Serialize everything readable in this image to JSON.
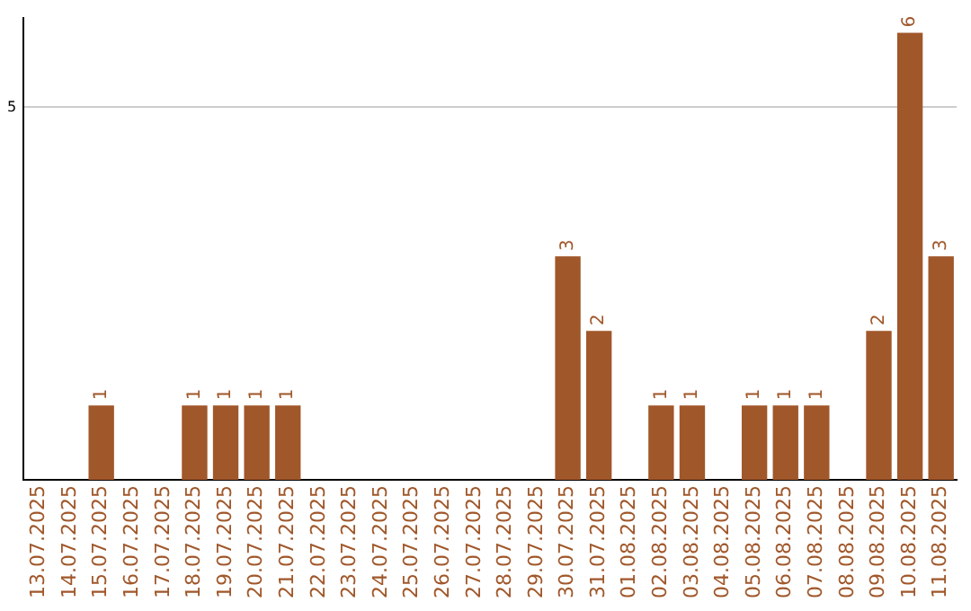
{
  "chart_data": {
    "type": "bar",
    "categories": [
      "13.07.2025",
      "14.07.2025",
      "15.07.2025",
      "16.07.2025",
      "17.07.2025",
      "18.07.2025",
      "19.07.2025",
      "20.07.2025",
      "21.07.2025",
      "22.07.2025",
      "23.07.2025",
      "24.07.2025",
      "25.07.2025",
      "26.07.2025",
      "27.07.2025",
      "28.07.2025",
      "29.07.2025",
      "30.07.2025",
      "31.07.2025",
      "01.08.2025",
      "02.08.2025",
      "03.08.2025",
      "04.08.2025",
      "05.08.2025",
      "06.08.2025",
      "07.08.2025",
      "08.08.2025",
      "09.08.2025",
      "10.08.2025",
      "11.08.2025"
    ],
    "values": [
      0,
      0,
      1,
      0,
      0,
      1,
      1,
      1,
      1,
      0,
      0,
      0,
      0,
      0,
      0,
      0,
      0,
      3,
      2,
      0,
      1,
      1,
      0,
      1,
      1,
      1,
      0,
      2,
      6,
      3
    ],
    "value_labels": [
      null,
      null,
      "1",
      null,
      null,
      "1",
      "1",
      "1",
      "1",
      null,
      null,
      null,
      null,
      null,
      null,
      null,
      null,
      "3",
      "2",
      null,
      "1",
      "1",
      null,
      "1",
      "1",
      "1",
      null,
      "2",
      "6",
      "3"
    ],
    "color": "#a0572a",
    "ylim": [
      0,
      6.2
    ],
    "yticks": [
      5
    ],
    "grid": "y",
    "legend": false
  }
}
